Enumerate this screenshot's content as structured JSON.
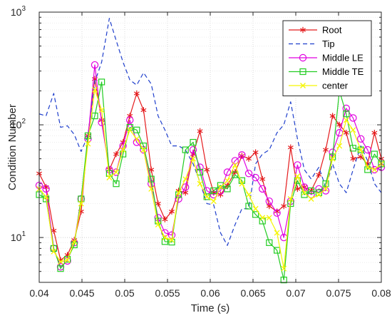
{
  "chart_data": {
    "type": "line",
    "xlabel": "Time (s)",
    "ylabel": "Condition Number",
    "xlim": [
      0.04,
      0.08
    ],
    "ylim": [
      4,
      1000
    ],
    "yscale": "log",
    "grid": true,
    "minor_grid": true,
    "legend_position": "top-right",
    "x_ticks": [
      "0.04",
      "0.045",
      "0.05",
      "0.055",
      "0.06",
      "0.065",
      "0.07",
      "0.075",
      "0.08"
    ],
    "y_ticks": [
      {
        "base": "10",
        "exp": "1",
        "value": 10
      },
      {
        "base": "10",
        "exp": "2",
        "value": 100
      },
      {
        "base": "10",
        "exp": "3",
        "value": 1000
      }
    ],
    "x": [
      0.04,
      0.0408,
      0.0417,
      0.0425,
      0.0433,
      0.0441,
      0.0449,
      0.0457,
      0.0465,
      0.0473,
      0.0482,
      0.049,
      0.0498,
      0.0506,
      0.0514,
      0.0522,
      0.0531,
      0.0539,
      0.0547,
      0.0555,
      0.0563,
      0.0571,
      0.058,
      0.0588,
      0.0596,
      0.0604,
      0.0612,
      0.062,
      0.0629,
      0.0637,
      0.0645,
      0.0653,
      0.0661,
      0.0669,
      0.0678,
      0.0686,
      0.0694,
      0.0702,
      0.071,
      0.0718,
      0.0727,
      0.0735,
      0.0743,
      0.0751,
      0.0759,
      0.0767,
      0.0776,
      0.0784,
      0.0792,
      0.08
    ],
    "series": [
      {
        "name": "Root",
        "color": "#e41a1c",
        "line_style": "solid",
        "marker": "asterisk",
        "values": [
          37,
          28,
          11.5,
          6.3,
          7,
          9.5,
          17,
          80,
          255,
          110,
          40,
          55,
          70,
          120,
          190,
          135,
          40,
          20,
          14.5,
          17,
          26,
          25,
          55,
          88,
          40,
          25,
          24,
          29,
          38,
          53,
          50,
          57,
          33,
          19,
          17,
          19,
          63,
          27,
          28,
          26,
          36,
          60,
          120,
          100,
          85,
          50,
          52,
          45,
          85,
          50
        ]
      },
      {
        "name": "Tip",
        "color": "#1f3fcc",
        "line_style": "dashed",
        "marker": "none",
        "values": [
          125,
          120,
          190,
          95,
          98,
          82,
          58,
          80,
          240,
          360,
          880,
          560,
          360,
          250,
          225,
          290,
          230,
          120,
          90,
          65,
          65,
          60,
          45,
          31,
          20,
          19.5,
          11,
          8.5,
          13,
          18,
          18,
          45,
          55,
          60,
          85,
          100,
          160,
          75,
          40,
          33,
          42,
          28,
          45,
          30,
          25,
          40,
          65,
          48,
          30,
          25
        ]
      },
      {
        "name": "Middle LE",
        "color": "#e000e0",
        "line_style": "solid",
        "marker": "circle",
        "values": [
          29,
          27,
          8,
          5.5,
          6.2,
          9,
          22,
          75,
          340,
          105,
          40,
          38,
          65,
          110,
          70,
          60,
          30,
          15,
          11,
          10.5,
          22,
          28,
          60,
          42,
          26,
          24,
          26,
          38,
          48,
          54,
          37,
          34,
          27,
          21,
          16.5,
          10,
          21,
          44,
          28,
          24,
          27,
          26,
          57,
          85,
          140,
          115,
          75,
          60,
          40,
          42
        ]
      },
      {
        "name": "Middle TE",
        "color": "#22cc22",
        "line_style": "solid",
        "marker": "square",
        "values": [
          24,
          22,
          8,
          5.3,
          6.4,
          8.6,
          22,
          80,
          120,
          240,
          37,
          30,
          55,
          95,
          90,
          65,
          33,
          14,
          9.2,
          9.1,
          24,
          60,
          70,
          38,
          23,
          26,
          29,
          27,
          36,
          32,
          19,
          16,
          14,
          9,
          7.7,
          4.2,
          20,
          32,
          24,
          26,
          25,
          30,
          52,
          200,
          125,
          62,
          60,
          40,
          55,
          45
        ]
      },
      {
        "name": "center",
        "color": "#f5f500",
        "line_style": "solid",
        "marker": "x",
        "values": [
          27,
          23,
          7.5,
          6.1,
          6.3,
          9.1,
          20,
          68,
          205,
          135,
          34,
          38,
          60,
          90,
          75,
          60,
          27,
          13,
          10,
          9.5,
          25,
          33,
          50,
          30,
          23,
          21,
          28,
          32,
          44,
          30,
          24,
          18,
          15,
          15,
          11,
          5.3,
          22,
          35,
          25,
          22,
          24,
          27,
          50,
          65,
          110,
          90,
          60,
          42,
          40,
          45
        ]
      }
    ]
  }
}
